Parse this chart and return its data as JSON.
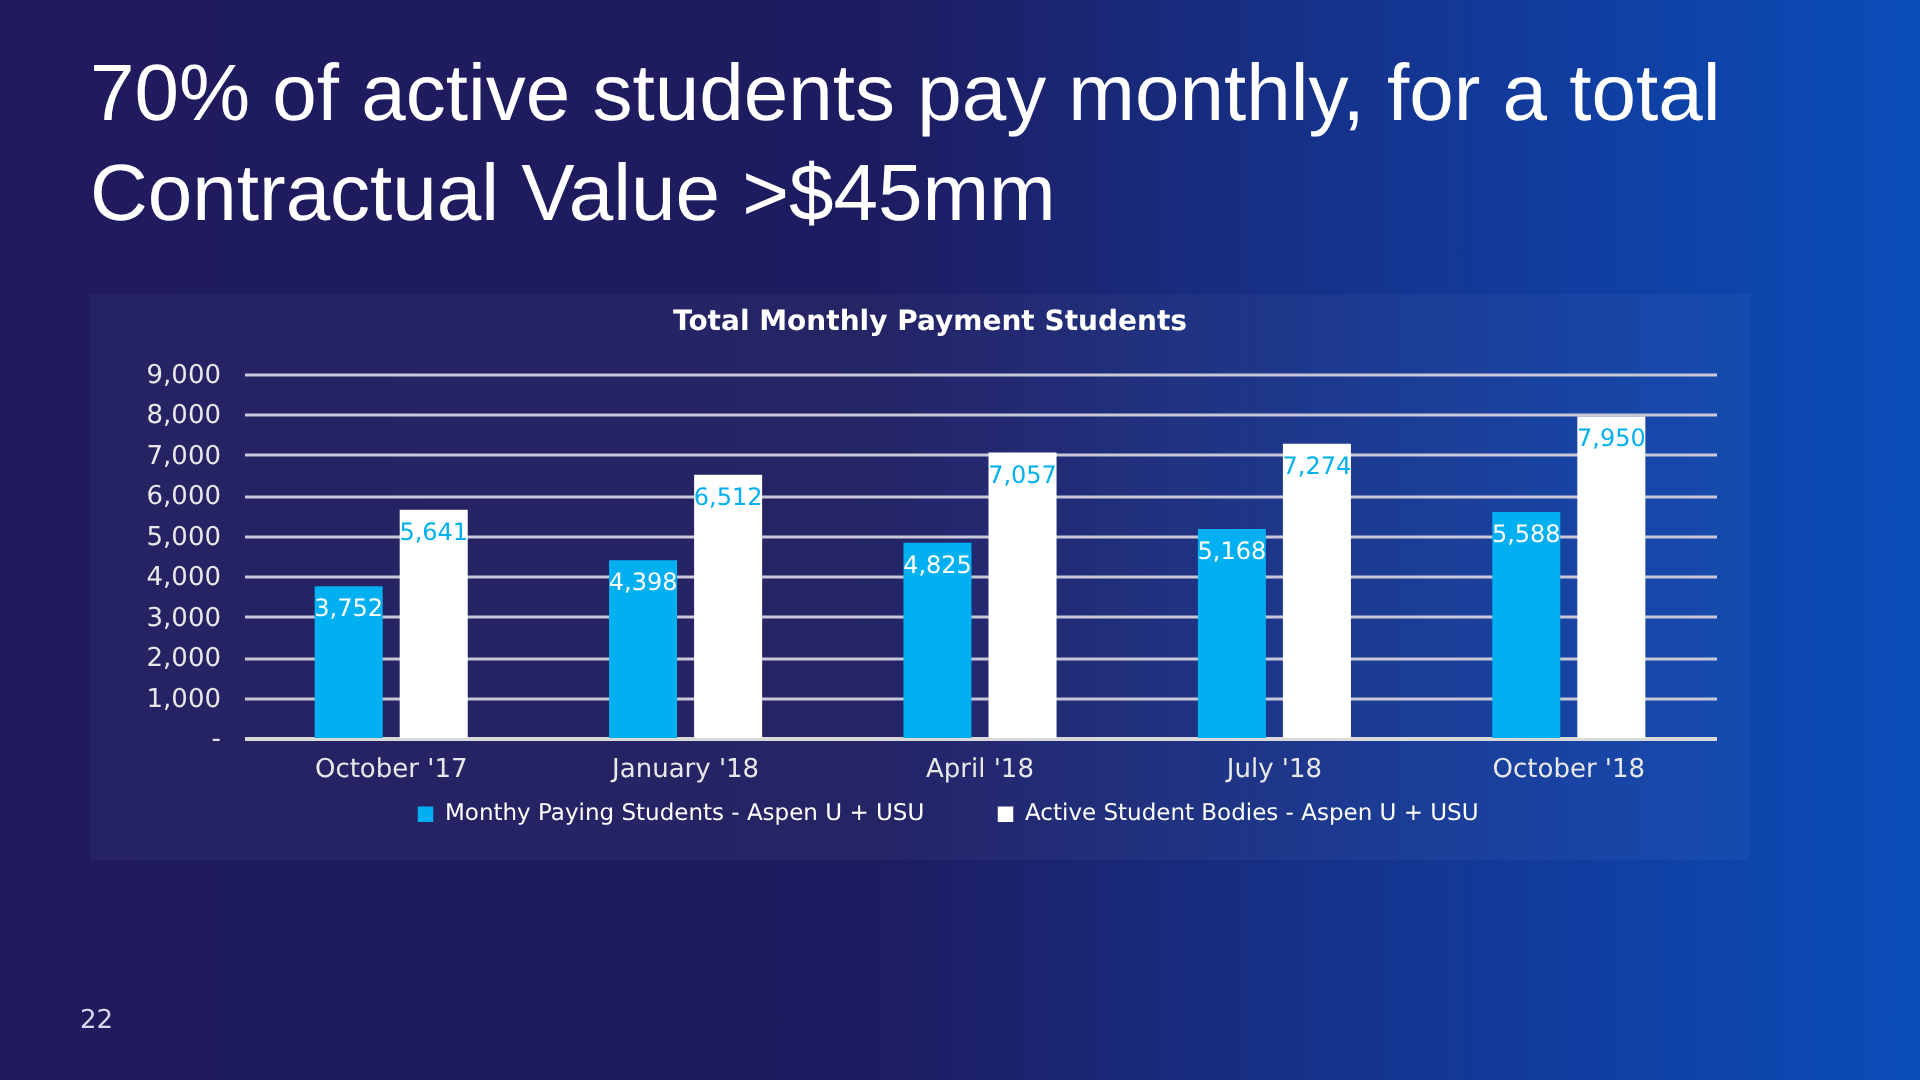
{
  "chart_data": {
    "type": "bar",
    "title": "70% of active students pay monthly, for a total Contractual Value >$45mm",
    "subtitle": "Total Monthly Payment Students",
    "categories": [
      "October '17",
      "January '18",
      "April '18",
      "July '18",
      "October '18"
    ],
    "series": [
      {
        "name": "Monthy Paying Students - Aspen U + USU",
        "color": "#00b0f0",
        "values": [
          3752,
          4398,
          4825,
          5168,
          5588
        ],
        "value_labels": [
          "3,752",
          "4,398",
          "4,825",
          "5,168",
          "5,588"
        ]
      },
      {
        "name": "Active Student Bodies - Aspen U + USU",
        "color": "#ffffff",
        "values": [
          5641,
          6512,
          7057,
          7274,
          7950
        ],
        "value_labels": [
          "5,641",
          "6,512",
          "7,057",
          "7,274",
          "7,950"
        ]
      }
    ],
    "ylim": [
      0,
      9000
    ],
    "yticks": [
      {
        "value": 0,
        "label": "-"
      },
      {
        "value": 1000,
        "label": "1,000"
      },
      {
        "value": 2000,
        "label": "2,000"
      },
      {
        "value": 3000,
        "label": "3,000"
      },
      {
        "value": 4000,
        "label": "4,000"
      },
      {
        "value": 5000,
        "label": "5,000"
      },
      {
        "value": 6000,
        "label": "6,000"
      },
      {
        "value": 7000,
        "label": "7,000"
      },
      {
        "value": 8000,
        "label": "8,000"
      },
      {
        "value": 9000,
        "label": "9,000"
      }
    ],
    "grid": "y",
    "legend": "bottom",
    "annotations": [
      "22"
    ]
  }
}
